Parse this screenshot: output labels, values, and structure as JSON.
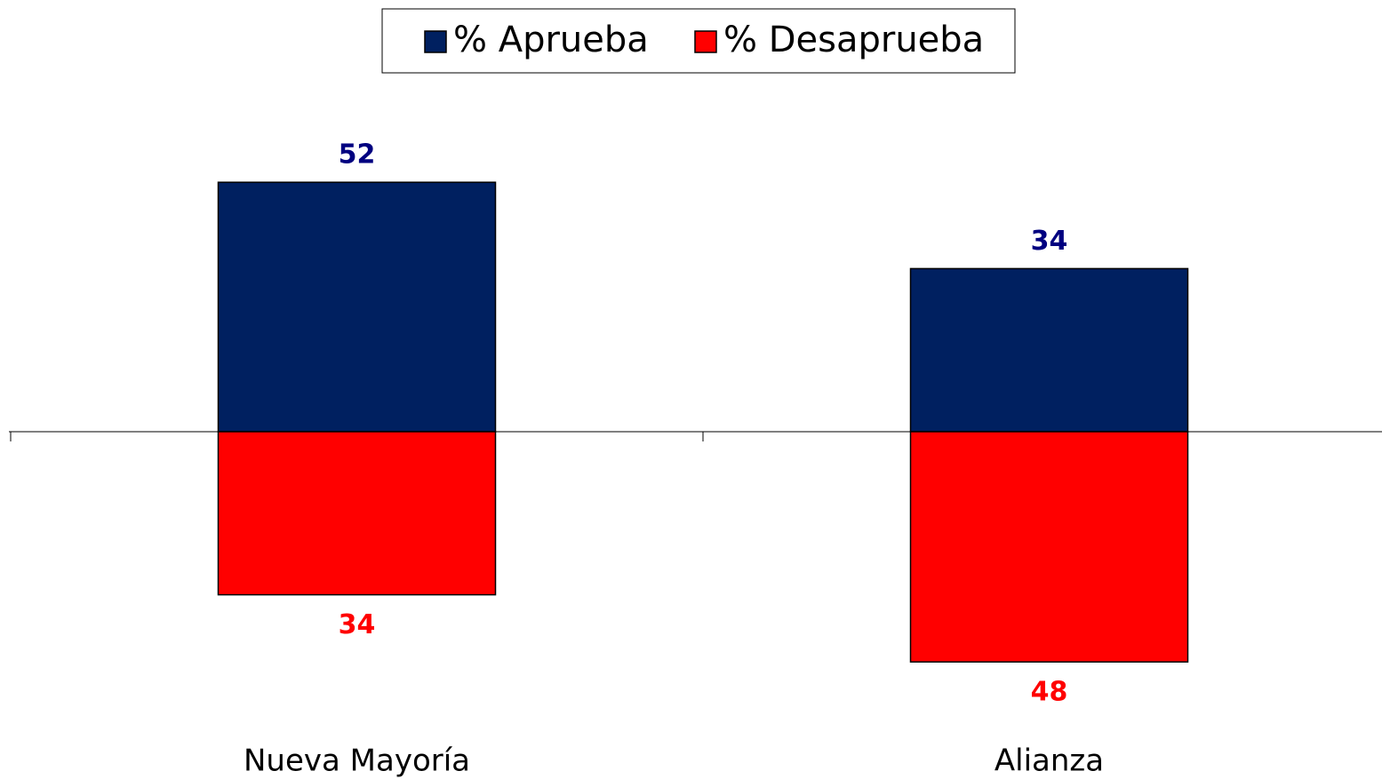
{
  "chart_data": {
    "type": "diverging-bar",
    "categories": [
      "Nueva Mayoría",
      "Alianza"
    ],
    "series": [
      {
        "name": "% Aprueba",
        "color": "#002060",
        "label_color": "#000080",
        "values": [
          52,
          34
        ]
      },
      {
        "name": "% Desaprueba",
        "color": "#ff0000",
        "label_color": "#ff0000",
        "values": [
          -34,
          -48
        ],
        "value_labels": [
          "34",
          "48"
        ]
      }
    ],
    "legend": "top"
  }
}
